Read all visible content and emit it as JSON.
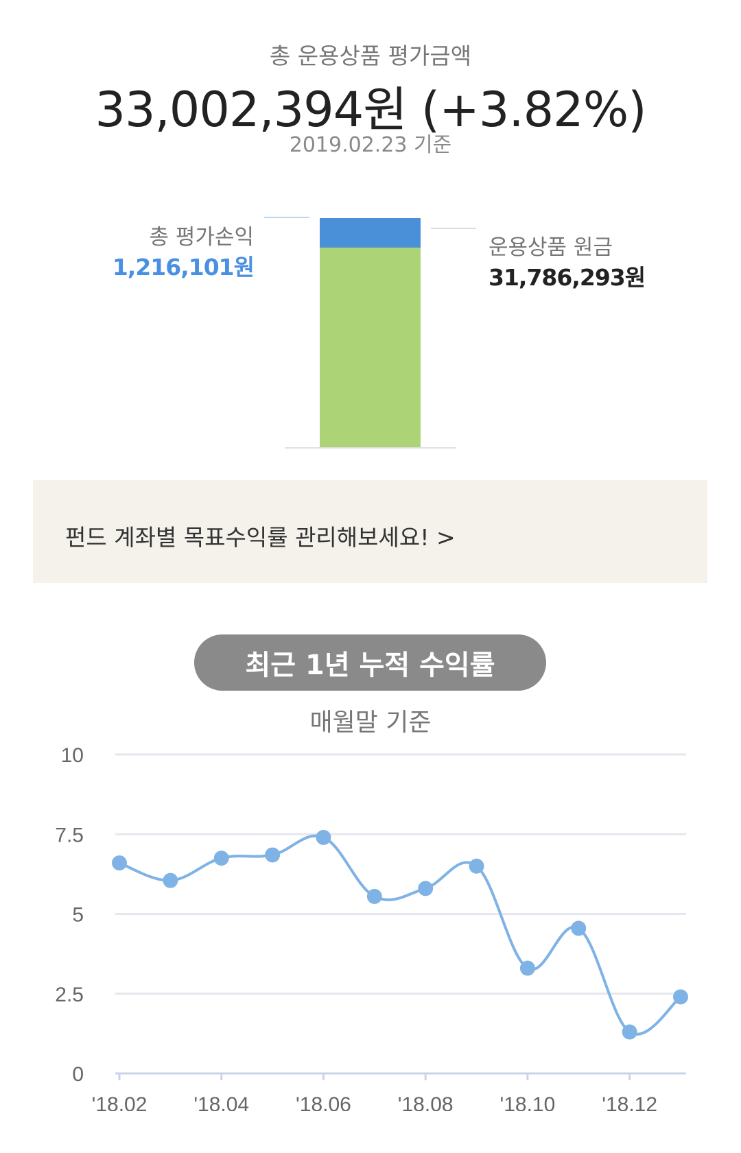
{
  "summary": {
    "title": "총 운용상품 평가금액",
    "amount": "33,002,394원 (+3.82%)",
    "date": "2019.02.23 기준"
  },
  "stack": {
    "profit_label": "총 평가손익",
    "profit_value": "1,216,101원",
    "principal_label": "운용상품 원금",
    "principal_value": "31,786,293원",
    "profit_amount": 1216101,
    "principal_amount": 31786293,
    "colors": {
      "profit": "#4a90d9",
      "principal": "#acd477"
    }
  },
  "banner": {
    "text": "펀드 계좌별 목표수익률 관리해보세요! >"
  },
  "returns": {
    "pill_label": "최근 1년 누적 수익률",
    "subtitle": "매월말 기준"
  },
  "chart_data": {
    "type": "line",
    "x": [
      "18.02",
      "18.03",
      "18.04",
      "18.05",
      "18.06",
      "18.07",
      "18.08",
      "18.09",
      "18.10",
      "18.11",
      "18.12",
      "19.01"
    ],
    "x_tick_labels": [
      "'18.02",
      "'18.04",
      "'18.06",
      "'18.08",
      "'18.10",
      "'18.12"
    ],
    "series": [
      {
        "values": [
          6.6,
          6.05,
          6.75,
          6.85,
          7.4,
          5.55,
          5.8,
          6.5,
          3.3,
          4.55,
          1.3,
          2.4
        ],
        "color": "#7fb2e5"
      }
    ],
    "yticks": [
      "0",
      "2.5",
      "5",
      "7.5",
      "10"
    ],
    "ylim": [
      0,
      10
    ],
    "grid": true
  }
}
